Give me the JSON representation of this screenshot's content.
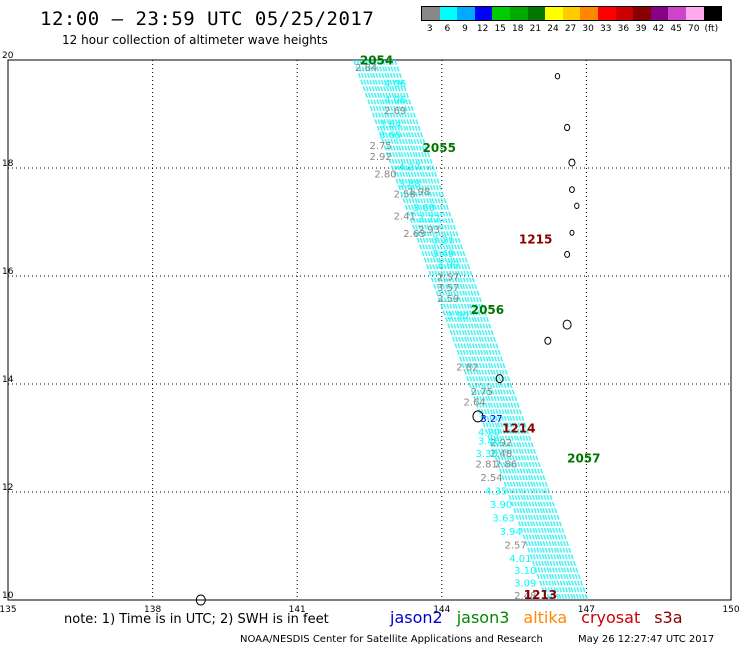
{
  "header": {
    "title": "12:00 – 23:59 UTC 05/25/2017",
    "subtitle": "12 hour collection of altimeter wave heights"
  },
  "legend": {
    "unit": "(ft)",
    "bins": [
      {
        "label": "3",
        "color": "#888888"
      },
      {
        "label": "6",
        "color": "#00ffff"
      },
      {
        "label": "9",
        "color": "#00aaff"
      },
      {
        "label": "12",
        "color": "#0000ff"
      },
      {
        "label": "15",
        "color": "#00cc00"
      },
      {
        "label": "18",
        "color": "#00aa00"
      },
      {
        "label": "21",
        "color": "#007700"
      },
      {
        "label": "24",
        "color": "#ffff00"
      },
      {
        "label": "27",
        "color": "#ffcc00"
      },
      {
        "label": "30",
        "color": "#ff8800"
      },
      {
        "label": "33",
        "color": "#ff0000"
      },
      {
        "label": "36",
        "color": "#cc0000"
      },
      {
        "label": "39",
        "color": "#880000"
      },
      {
        "label": "42",
        "color": "#880088"
      },
      {
        "label": "45",
        "color": "#cc44cc"
      },
      {
        "label": "70",
        "color": "#ffaaee"
      },
      {
        "label": "",
        "color": "#000000"
      }
    ]
  },
  "map": {
    "lon_range": [
      135,
      150
    ],
    "lat_range": [
      10,
      20
    ],
    "lon_ticks": [
      "135",
      "138",
      "141",
      "144",
      "147",
      "150"
    ],
    "lat_ticks": [
      "20",
      "18",
      "16",
      "14",
      "12",
      "10"
    ],
    "pass_labels": [
      {
        "text": "2054",
        "lon": 142.3,
        "lat": 19.92,
        "color": "#007700"
      },
      {
        "text": "2055",
        "lon": 143.6,
        "lat": 18.3,
        "color": "#007700"
      },
      {
        "text": "2056",
        "lon": 144.6,
        "lat": 15.3,
        "color": "#007700"
      },
      {
        "text": "2057",
        "lon": 146.6,
        "lat": 12.55,
        "color": "#007700"
      },
      {
        "text": "1215",
        "lon": 145.6,
        "lat": 16.6,
        "color": "#880000"
      },
      {
        "text": "1214",
        "lon": 145.25,
        "lat": 13.1,
        "color": "#880000"
      },
      {
        "text": "1213",
        "lon": 145.7,
        "lat": 10.02,
        "color": "#880000"
      }
    ],
    "wave_values": [
      {
        "text": "2.84",
        "lon": 142.2,
        "lat": 19.8,
        "color": "#888888"
      },
      {
        "text": "4.06",
        "lon": 142.8,
        "lat": 19.5,
        "color": "#00ffff"
      },
      {
        "text": "4.06",
        "lon": 142.8,
        "lat": 19.2,
        "color": "#00ffff"
      },
      {
        "text": "2.69",
        "lon": 142.8,
        "lat": 19.0,
        "color": "#888888"
      },
      {
        "text": "3.64",
        "lon": 142.7,
        "lat": 18.75,
        "color": "#00ffff"
      },
      {
        "text": "3.65",
        "lon": 142.7,
        "lat": 18.55,
        "color": "#00ffff"
      },
      {
        "text": "2.75",
        "lon": 142.5,
        "lat": 18.35,
        "color": "#888888"
      },
      {
        "text": "2.92",
        "lon": 142.5,
        "lat": 18.15,
        "color": "#888888"
      },
      {
        "text": "4.27",
        "lon": 143.1,
        "lat": 17.95,
        "color": "#00ffff"
      },
      {
        "text": "2.80",
        "lon": 142.6,
        "lat": 17.82,
        "color": "#888888"
      },
      {
        "text": "3.88",
        "lon": 143.1,
        "lat": 17.65,
        "color": "#00ffff"
      },
      {
        "text": "1.98",
        "lon": 143.3,
        "lat": 17.5,
        "color": "#888888"
      },
      {
        "text": "2.53",
        "lon": 143.0,
        "lat": 17.45,
        "color": "#888888"
      },
      {
        "text": "3.68",
        "lon": 143.4,
        "lat": 17.2,
        "color": "#00ffff"
      },
      {
        "text": "2.41",
        "lon": 143.0,
        "lat": 17.05,
        "color": "#888888"
      },
      {
        "text": "3.22",
        "lon": 143.5,
        "lat": 17.0,
        "color": "#00ffff"
      },
      {
        "text": "2.93",
        "lon": 143.5,
        "lat": 16.8,
        "color": "#888888"
      },
      {
        "text": "2.63",
        "lon": 143.2,
        "lat": 16.72,
        "color": "#888888"
      },
      {
        "text": "3.21",
        "lon": 143.8,
        "lat": 16.6,
        "color": "#00ffff"
      },
      {
        "text": "3.49",
        "lon": 143.8,
        "lat": 16.35,
        "color": "#00ffff"
      },
      {
        "text": "3.99",
        "lon": 143.9,
        "lat": 16.15,
        "color": "#00ffff"
      },
      {
        "text": "2.57",
        "lon": 143.9,
        "lat": 15.92,
        "color": "#888888"
      },
      {
        "text": "3.57",
        "lon": 143.9,
        "lat": 15.72,
        "color": "#888888"
      },
      {
        "text": "2.59",
        "lon": 143.9,
        "lat": 15.52,
        "color": "#888888"
      },
      {
        "text": "3.90",
        "lon": 144.1,
        "lat": 15.2,
        "color": "#00ffff"
      },
      {
        "text": "2.82",
        "lon": 144.3,
        "lat": 14.25,
        "color": "#888888"
      },
      {
        "text": "2.75",
        "lon": 144.6,
        "lat": 13.8,
        "color": "#888888"
      },
      {
        "text": "2.64",
        "lon": 144.45,
        "lat": 13.6,
        "color": "#888888"
      },
      {
        "text": "3.27",
        "lon": 144.8,
        "lat": 13.3,
        "color": "#0000ff"
      },
      {
        "text": "4.20",
        "lon": 144.75,
        "lat": 13.05,
        "color": "#00ffff"
      },
      {
        "text": "2.92",
        "lon": 145.0,
        "lat": 12.85,
        "color": "#888888"
      },
      {
        "text": "3.46",
        "lon": 144.75,
        "lat": 12.88,
        "color": "#00ffff"
      },
      {
        "text": "2.48",
        "lon": 145.0,
        "lat": 12.65,
        "color": "#888888"
      },
      {
        "text": "3.36",
        "lon": 144.7,
        "lat": 12.65,
        "color": "#00ffff"
      },
      {
        "text": "2.86",
        "lon": 145.1,
        "lat": 12.45,
        "color": "#888888"
      },
      {
        "text": "2.81",
        "lon": 144.7,
        "lat": 12.45,
        "color": "#888888"
      },
      {
        "text": "2.54",
        "lon": 144.8,
        "lat": 12.2,
        "color": "#888888"
      },
      {
        "text": "4.35",
        "lon": 144.9,
        "lat": 11.95,
        "color": "#00ffff"
      },
      {
        "text": "3.90",
        "lon": 145.0,
        "lat": 11.7,
        "color": "#00ffff"
      },
      {
        "text": "3.63",
        "lon": 145.05,
        "lat": 11.45,
        "color": "#00ffff"
      },
      {
        "text": "3.94",
        "lon": 145.2,
        "lat": 11.2,
        "color": "#00ffff"
      },
      {
        "text": "2.57",
        "lon": 145.3,
        "lat": 10.95,
        "color": "#888888"
      },
      {
        "text": "4.01",
        "lon": 145.4,
        "lat": 10.7,
        "color": "#00ffff"
      },
      {
        "text": "3.10",
        "lon": 145.5,
        "lat": 10.48,
        "color": "#00ffff"
      },
      {
        "text": "3.09",
        "lon": 145.5,
        "lat": 10.25,
        "color": "#00ffff"
      },
      {
        "text": "2.48",
        "lon": 145.5,
        "lat": 10.02,
        "color": "#888888"
      }
    ]
  },
  "footer": {
    "note": "note: 1) Time is in UTC; 2) SWH is in feet",
    "missions": [
      {
        "name": "jason2",
        "color": "#0000cc"
      },
      {
        "name": "jason3",
        "color": "#008800"
      },
      {
        "name": "altika",
        "color": "#ff8800"
      },
      {
        "name": "cryosat",
        "color": "#cc0000"
      },
      {
        "name": "s3a",
        "color": "#880000"
      }
    ],
    "credit": "NOAA/NESDIS Center for Satellite Applications and Research",
    "timestamp": "May 26 12:27:47 UTC 2017"
  }
}
